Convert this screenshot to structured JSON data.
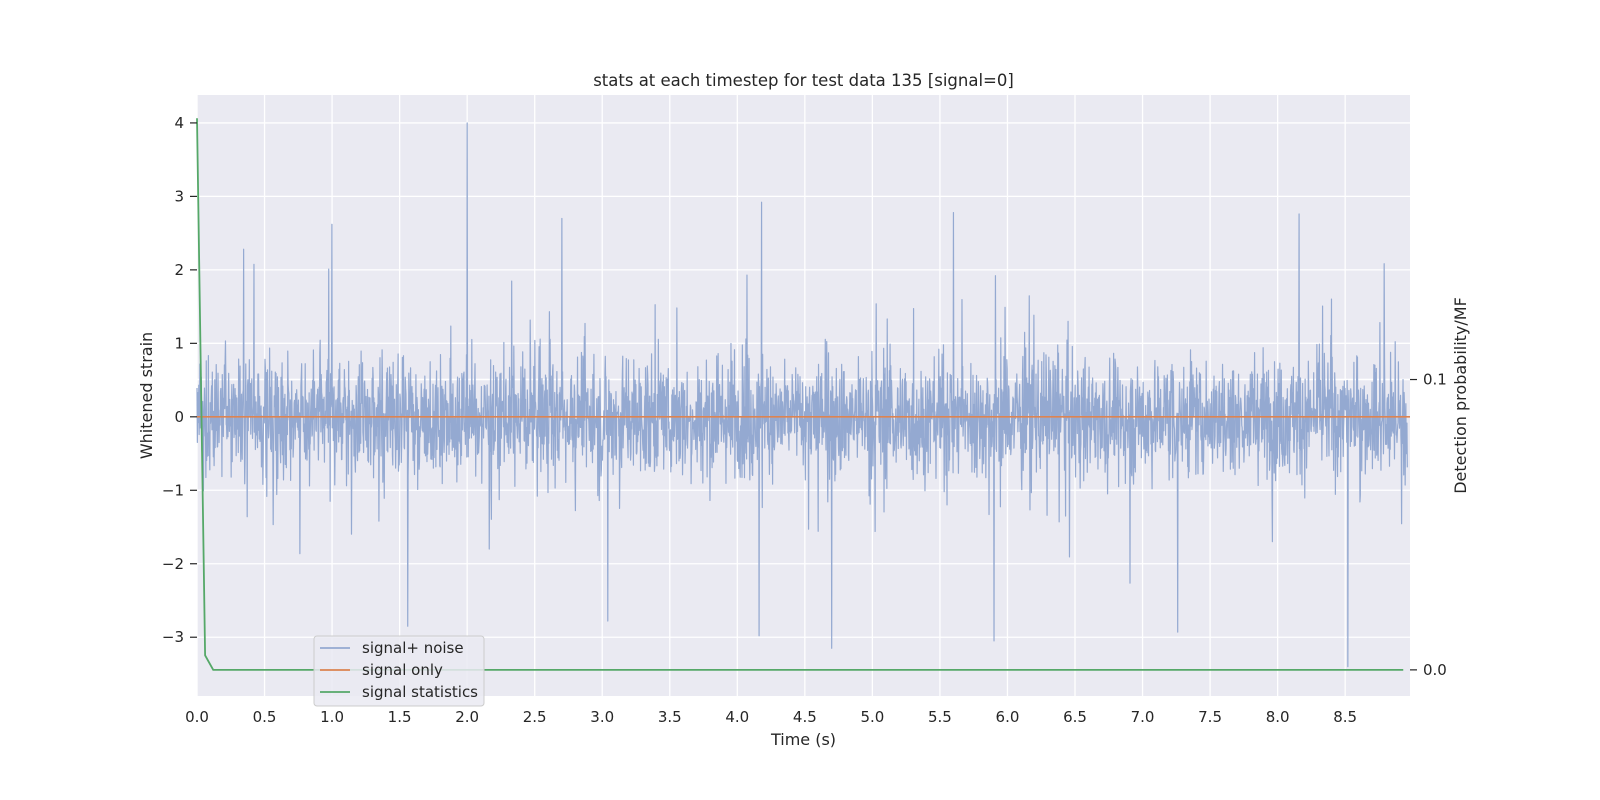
{
  "chart_data": {
    "type": "line",
    "title": "stats at each timestep for test data 135 [signal=0]",
    "xlabel": "Time (s)",
    "ylabel": "Whitened strain",
    "y2label": "Detection probability/MF",
    "xlim": [
      0.0,
      8.98
    ],
    "ylim": [
      -3.8,
      4.38
    ],
    "y2lim": [
      -0.009,
      0.198
    ],
    "xticks": [
      "0.0",
      "0.5",
      "1.0",
      "1.5",
      "2.0",
      "2.5",
      "3.0",
      "3.5",
      "4.0",
      "4.5",
      "5.0",
      "5.5",
      "6.0",
      "6.5",
      "7.0",
      "7.5",
      "8.0",
      "8.5"
    ],
    "yticks": [
      "−3",
      "−2",
      "−1",
      "0",
      "1",
      "2",
      "3",
      "4"
    ],
    "y2ticks": [
      "0.0",
      "0.1"
    ],
    "grid": true,
    "legend_position": "lower-left",
    "noise_envelope": {
      "typical_peak_positive": 1.6,
      "typical_peak_negative": -1.6,
      "notable_peaks": [
        {
          "x": 2.0,
          "y": 4.0
        },
        {
          "x": 4.18,
          "y": 2.92
        },
        {
          "x": 5.6,
          "y": 2.78
        },
        {
          "x": 8.16,
          "y": 2.76
        },
        {
          "x": 2.7,
          "y": 2.7
        },
        {
          "x": 1.0,
          "y": 2.62
        },
        {
          "x": 4.7,
          "y": -3.15
        },
        {
          "x": 5.9,
          "y": -3.05
        },
        {
          "x": 8.52,
          "y": -3.4
        },
        {
          "x": 1.56,
          "y": -2.85
        },
        {
          "x": 4.16,
          "y": -2.98
        },
        {
          "x": 7.26,
          "y": -2.93
        },
        {
          "x": 3.04,
          "y": -2.78
        }
      ]
    },
    "series": [
      {
        "name": "signal+ noise",
        "color": "#94a9d1",
        "kind": "whitened noise strain, approx ±1.6 with spikes to 4.0 and -3.4"
      },
      {
        "name": "signal only",
        "color": "#dd8452",
        "axis": "left",
        "x": [
          0.0,
          8.98
        ],
        "y": [
          0.0,
          0.0
        ]
      },
      {
        "name": "signal statistics",
        "color": "#55a868",
        "axis": "right",
        "x": [
          0.0,
          0.06,
          0.12,
          8.93
        ],
        "y": [
          0.19,
          0.005,
          0.0,
          0.0
        ]
      }
    ],
    "reference_lines": [
      {
        "axis": "right",
        "y": 0.1,
        "color": "#ffffff"
      }
    ]
  }
}
